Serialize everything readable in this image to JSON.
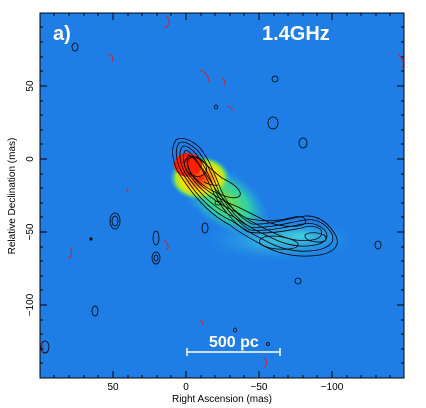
{
  "figure": {
    "panel_label": "a)",
    "frequency_label": "1.4GHz",
    "scale_bar_label": "500 pc",
    "x_axis_title": "Right Ascension  (mas)",
    "y_axis_title": "Relative Declination  (mas)",
    "x_ticks": [
      "50",
      "0",
      "−50",
      "−100"
    ],
    "y_ticks": [
      "50",
      "0",
      "−50",
      "−100"
    ],
    "x_tick_values": [
      50,
      0,
      -50,
      -100
    ],
    "y_tick_values": [
      50,
      0,
      -50,
      -100
    ],
    "x_range_mas": [
      100,
      -150
    ],
    "y_range_mas": [
      -148,
      98
    ]
  },
  "colors": {
    "background": "#1e7ee6",
    "positive_contour": "#000000",
    "negative_contour": "#d0202a",
    "peak": "#ff2000",
    "scale_bar": "#ffffff"
  }
}
